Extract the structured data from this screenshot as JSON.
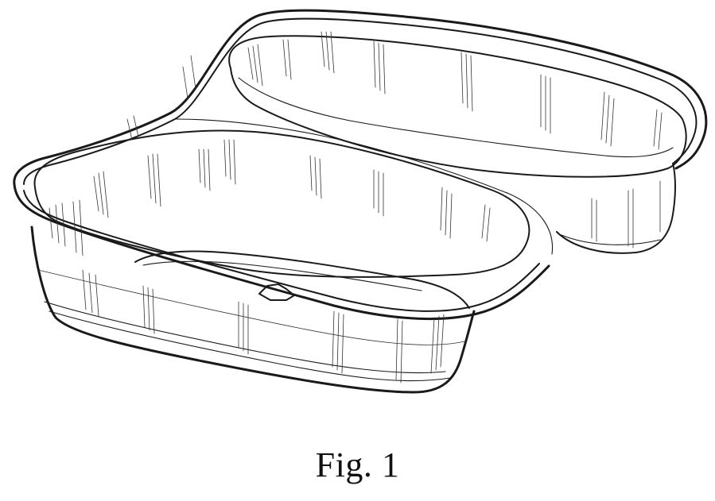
{
  "figure": {
    "caption": "Fig. 1"
  }
}
